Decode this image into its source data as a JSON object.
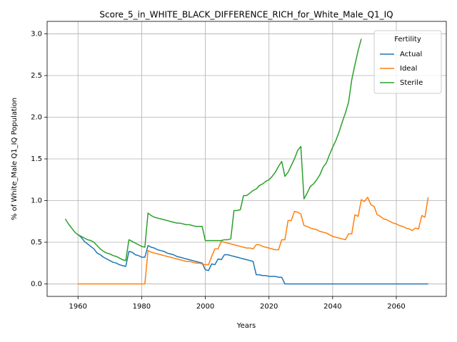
{
  "chart_data": {
    "type": "line",
    "title": "Score_5_in_WHITE_BLACK_DIFFERENCE_RICH_for_White_Male_Q1_IQ",
    "xlabel": "Years",
    "ylabel": "% of White_Male Q1_IQ Population",
    "legend_title": "Fertility",
    "legend": "upper right",
    "grid": true,
    "xlim": [
      1950.3,
      2075.7
    ],
    "ylim": [
      -0.15,
      3.15
    ],
    "xticks": [
      1960,
      1980,
      2000,
      2020,
      2040,
      2060
    ],
    "yticks": [
      {
        "value": 0,
        "label": "0.0"
      },
      {
        "value": 0.5,
        "label": "0.5"
      },
      {
        "value": 1,
        "label": "1.0"
      },
      {
        "value": 1.5,
        "label": "1.5"
      },
      {
        "value": 2,
        "label": "2.0"
      },
      {
        "value": 2.5,
        "label": "2.5"
      },
      {
        "value": 3,
        "label": "3.0"
      }
    ],
    "x": [
      1956,
      1957,
      1958,
      1959,
      1960,
      1961,
      1962,
      1963,
      1964,
      1965,
      1966,
      1967,
      1968,
      1969,
      1970,
      1971,
      1972,
      1973,
      1974,
      1975,
      1976,
      1977,
      1978,
      1979,
      1980,
      1981,
      1982,
      1983,
      1984,
      1985,
      1986,
      1987,
      1988,
      1989,
      1990,
      1991,
      1992,
      1993,
      1994,
      1995,
      1996,
      1997,
      1998,
      1999,
      2000,
      2001,
      2002,
      2003,
      2004,
      2005,
      2006,
      2007,
      2008,
      2009,
      2010,
      2011,
      2012,
      2013,
      2014,
      2015,
      2016,
      2017,
      2018,
      2019,
      2020,
      2021,
      2022,
      2023,
      2024,
      2025,
      2026,
      2027,
      2028,
      2029,
      2030,
      2031,
      2032,
      2033,
      2034,
      2035,
      2036,
      2037,
      2038,
      2039,
      2040,
      2041,
      2042,
      2043,
      2044,
      2045,
      2046,
      2047,
      2048,
      2049,
      2050,
      2051,
      2052,
      2053,
      2054,
      2055,
      2056,
      2057,
      2058,
      2059,
      2060,
      2061,
      2062,
      2063,
      2064,
      2065,
      2066,
      2067,
      2068,
      2069,
      2070
    ],
    "series": [
      {
        "name": "Actual",
        "color": "#1f77b4",
        "values": [
          null,
          null,
          null,
          null,
          0.59,
          0.56,
          0.51,
          0.48,
          0.45,
          0.42,
          0.37,
          0.35,
          0.32,
          0.3,
          0.28,
          0.26,
          0.25,
          0.23,
          0.22,
          0.21,
          0.39,
          0.38,
          0.35,
          0.34,
          0.32,
          0.32,
          0.46,
          0.44,
          0.43,
          0.41,
          0.4,
          0.39,
          0.37,
          0.36,
          0.35,
          0.33,
          0.32,
          0.31,
          0.3,
          0.29,
          0.28,
          0.27,
          0.26,
          0.25,
          0.17,
          0.16,
          0.24,
          0.23,
          0.3,
          0.29,
          0.35,
          0.35,
          0.34,
          0.33,
          0.32,
          0.31,
          0.3,
          0.29,
          0.28,
          0.27,
          0.11,
          0.11,
          0.1,
          0.1,
          0.09,
          0.09,
          0.09,
          0.08,
          0.08,
          0,
          0,
          0,
          0,
          0,
          0,
          0,
          0,
          0,
          0,
          0,
          0,
          0,
          0,
          0,
          0,
          0,
          0,
          0,
          0,
          0,
          0,
          0,
          0,
          0,
          0,
          0,
          0,
          0,
          0,
          0,
          0,
          0,
          0,
          0,
          0,
          0,
          0,
          0,
          0,
          0,
          0,
          0,
          0,
          0,
          0
        ]
      },
      {
        "name": "Ideal",
        "color": "#ff7f0e",
        "values": [
          null,
          null,
          null,
          null,
          0,
          0,
          0,
          0,
          0,
          0,
          0,
          0,
          0,
          0,
          0,
          0,
          0,
          0,
          0,
          0,
          0,
          0,
          0,
          0,
          0,
          0,
          0.4,
          0.38,
          0.37,
          0.36,
          0.35,
          0.34,
          0.33,
          0.32,
          0.31,
          0.3,
          0.29,
          0.28,
          0.27,
          0.27,
          0.26,
          0.25,
          0.25,
          0.24,
          0.23,
          0.23,
          0.33,
          0.42,
          0.42,
          0.51,
          0.5,
          0.49,
          0.48,
          0.47,
          0.46,
          0.45,
          0.44,
          0.43,
          0.43,
          0.42,
          0.47,
          0.47,
          0.45,
          0.44,
          0.43,
          0.42,
          0.41,
          0.41,
          0.53,
          0.53,
          0.76,
          0.76,
          0.87,
          0.86,
          0.84,
          0.7,
          0.69,
          0.67,
          0.66,
          0.65,
          0.63,
          0.62,
          0.61,
          0.59,
          0.57,
          0.56,
          0.55,
          0.54,
          0.53,
          0.6,
          0.6,
          0.83,
          0.81,
          1.01,
          0.99,
          1.04,
          0.95,
          0.93,
          0.83,
          0.81,
          0.78,
          0.77,
          0.75,
          0.73,
          0.72,
          0.7,
          0.69,
          0.67,
          0.66,
          0.64,
          0.67,
          0.66,
          0.82,
          0.8,
          1.04
        ]
      },
      {
        "name": "Sterile",
        "color": "#2ca02c",
        "values": [
          0.78,
          0.72,
          0.67,
          0.62,
          0.59,
          0.57,
          0.55,
          0.53,
          0.52,
          0.5,
          0.46,
          0.42,
          0.39,
          0.37,
          0.36,
          0.34,
          0.33,
          0.31,
          0.29,
          0.28,
          0.53,
          0.51,
          0.49,
          0.47,
          0.45,
          0.44,
          0.85,
          0.82,
          0.8,
          0.79,
          0.78,
          0.77,
          0.76,
          0.75,
          0.74,
          0.73,
          0.73,
          0.72,
          0.71,
          0.71,
          0.7,
          0.69,
          0.69,
          0.69,
          0.52,
          0.52,
          0.52,
          0.52,
          0.52,
          0.52,
          0.53,
          0.53,
          0.54,
          0.88,
          0.88,
          0.89,
          1.06,
          1.06,
          1.09,
          1.12,
          1.14,
          1.18,
          1.2,
          1.23,
          1.25,
          1.29,
          1.34,
          1.41,
          1.47,
          1.29,
          1.34,
          1.42,
          1.5,
          1.6,
          1.65,
          1.02,
          1.09,
          1.17,
          1.2,
          1.25,
          1.31,
          1.4,
          1.45,
          1.55,
          1.64,
          1.72,
          1.82,
          1.94,
          2.05,
          2.18,
          2.45,
          2.63,
          2.8,
          2.94,
          null,
          null,
          null,
          null,
          null,
          null,
          null,
          null,
          null,
          null,
          null,
          null,
          null,
          null,
          null,
          null,
          null,
          null,
          null,
          null,
          null
        ]
      }
    ]
  }
}
